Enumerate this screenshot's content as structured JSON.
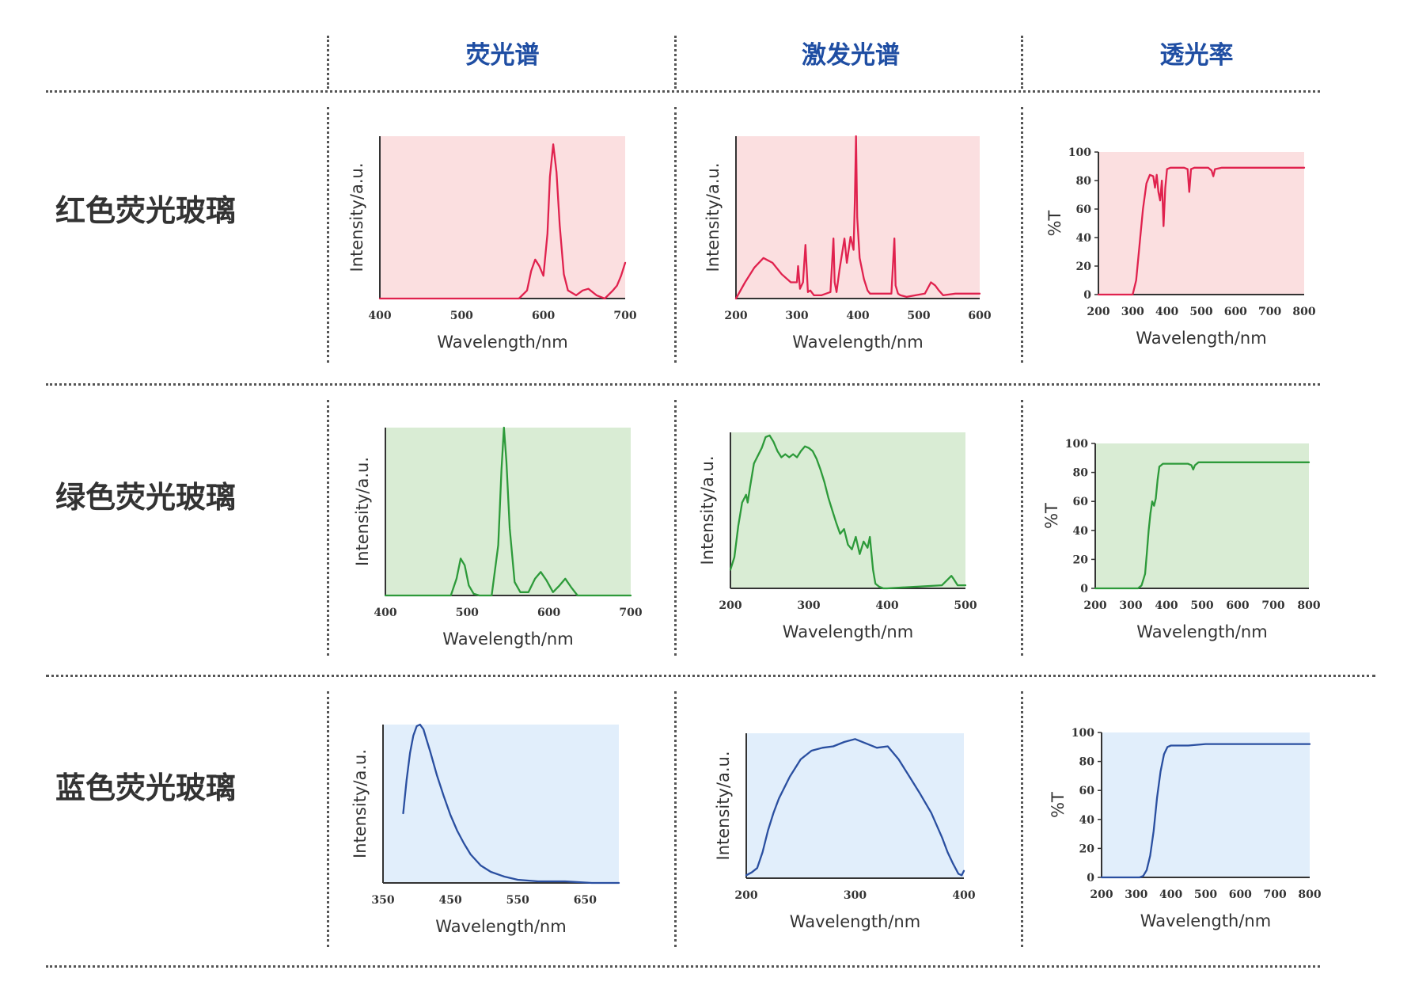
{
  "headers": {
    "emission": "荧光谱",
    "excitation": "激发光谱",
    "transmittance": "透光率"
  },
  "rows": [
    {
      "label": "红色荧光玻璃"
    },
    {
      "label": "绿色荧光玻璃"
    },
    {
      "label": "蓝色荧光玻璃"
    }
  ],
  "colors": {
    "header_text": "#1f4ea3",
    "row_text": "#333333",
    "divider": "#555555",
    "red_line": "#e0224e",
    "red_bg": "#fbdfe0",
    "green_line": "#2d9a3a",
    "green_bg": "#d9ecd4",
    "blue_line": "#2a4fa0",
    "blue_bg": "#e1eefb"
  },
  "chart_data": [
    {
      "id": "red-emission",
      "type": "line",
      "xlabel": "Wavelength/nm",
      "ylabel": "Intensity/a.u.",
      "xlim": [
        400,
        700
      ],
      "ylim": [
        0,
        100
      ],
      "xticks": [
        400,
        500,
        600,
        700
      ],
      "yticks": [],
      "color": "red",
      "series": [
        {
          "x": [
            400,
            570,
            580,
            585,
            590,
            595,
            600,
            605,
            608,
            612,
            616,
            620,
            625,
            630,
            640,
            648,
            655,
            665,
            675,
            685,
            690,
            695,
            700
          ],
          "y": [
            0,
            0,
            5,
            17,
            24,
            20,
            14,
            40,
            75,
            95,
            78,
            45,
            15,
            5,
            2,
            5,
            6,
            2,
            0,
            5,
            8,
            14,
            22
          ]
        }
      ]
    },
    {
      "id": "red-excitation",
      "type": "line",
      "xlabel": "Wavelength/nm",
      "ylabel": "Intensity/a.u.",
      "xlim": [
        200,
        600
      ],
      "ylim": [
        0,
        100
      ],
      "xticks": [
        200,
        300,
        400,
        500,
        600
      ],
      "yticks": [],
      "color": "red",
      "series": [
        {
          "x": [
            200,
            215,
            230,
            245,
            260,
            275,
            290,
            300,
            302,
            305,
            310,
            314,
            318,
            322,
            328,
            340,
            355,
            360,
            362,
            365,
            370,
            378,
            382,
            388,
            393,
            395,
            397,
            399,
            403,
            410,
            416,
            420,
            430,
            455,
            460,
            462,
            466,
            470,
            480,
            510,
            520,
            527,
            533,
            540,
            560,
            600
          ],
          "y": [
            0,
            10,
            19,
            25,
            22,
            15,
            10,
            10,
            20,
            6,
            10,
            33,
            4,
            5,
            2,
            2,
            4,
            37,
            10,
            4,
            18,
            37,
            22,
            38,
            30,
            60,
            100,
            50,
            25,
            12,
            5,
            3,
            3,
            3,
            37,
            8,
            3,
            2,
            1,
            3,
            10,
            8,
            5,
            2,
            3,
            3
          ]
        }
      ]
    },
    {
      "id": "red-transmittance",
      "type": "line",
      "xlabel": "Wavelength/nm",
      "ylabel": "%T",
      "xlim": [
        200,
        800
      ],
      "ylim": [
        0,
        100
      ],
      "xticks": [
        200,
        300,
        400,
        500,
        600,
        700,
        800
      ],
      "yticks": [
        0,
        20,
        40,
        60,
        80,
        100
      ],
      "color": "red",
      "series": [
        {
          "x": [
            200,
            300,
            310,
            320,
            330,
            340,
            350,
            360,
            365,
            370,
            375,
            380,
            385,
            390,
            395,
            400,
            410,
            420,
            450,
            460,
            465,
            470,
            480,
            520,
            530,
            535,
            540,
            560,
            600,
            800
          ],
          "y": [
            0,
            0,
            10,
            35,
            60,
            78,
            84,
            83,
            75,
            84,
            72,
            66,
            80,
            48,
            75,
            88,
            89,
            89,
            89,
            88,
            72,
            88,
            89,
            89,
            87,
            83,
            88,
            89,
            89,
            89
          ]
        }
      ]
    },
    {
      "id": "green-emission",
      "type": "line",
      "xlabel": "Wavelength/nm",
      "ylabel": "Intensity/a.u.",
      "xlim": [
        400,
        700
      ],
      "ylim": [
        0,
        100
      ],
      "xticks": [
        400,
        500,
        600,
        700
      ],
      "yticks": [],
      "color": "green",
      "series": [
        {
          "x": [
            400,
            480,
            487,
            492,
            497,
            502,
            508,
            515,
            530,
            538,
            542,
            545,
            548,
            552,
            558,
            565,
            575,
            583,
            590,
            597,
            605,
            613,
            620,
            627,
            635,
            700
          ],
          "y": [
            0,
            0,
            10,
            22,
            18,
            6,
            1,
            0,
            0,
            30,
            75,
            100,
            80,
            40,
            8,
            2,
            2,
            10,
            14,
            9,
            2,
            6,
            10,
            5,
            0,
            0
          ]
        }
      ]
    },
    {
      "id": "green-excitation",
      "type": "line",
      "xlabel": "Wavelength/nm",
      "ylabel": "Intensity/a.u.",
      "xlim": [
        200,
        500
      ],
      "ylim": [
        0,
        100
      ],
      "xticks": [
        200,
        300,
        400,
        500
      ],
      "yticks": [],
      "color": "green",
      "series": [
        {
          "x": [
            200,
            205,
            210,
            215,
            220,
            222,
            225,
            230,
            240,
            245,
            250,
            255,
            260,
            265,
            270,
            275,
            280,
            285,
            290,
            295,
            300,
            305,
            310,
            315,
            320,
            325,
            330,
            335,
            340,
            345,
            350,
            355,
            360,
            365,
            370,
            375,
            378,
            382,
            385,
            390,
            395,
            400,
            470,
            478,
            482,
            485,
            490,
            500
          ],
          "y": [
            12,
            20,
            40,
            55,
            60,
            55,
            65,
            80,
            90,
            97,
            98,
            94,
            88,
            84,
            86,
            84,
            86,
            84,
            88,
            91,
            90,
            88,
            83,
            76,
            68,
            58,
            50,
            42,
            35,
            38,
            28,
            25,
            33,
            22,
            30,
            26,
            33,
            12,
            3,
            1,
            0,
            0,
            2,
            6,
            8,
            6,
            2,
            2
          ]
        }
      ]
    },
    {
      "id": "green-transmittance",
      "type": "line",
      "xlabel": "Wavelength/nm",
      "ylabel": "%T",
      "xlim": [
        200,
        800
      ],
      "ylim": [
        0,
        100
      ],
      "xticks": [
        200,
        300,
        400,
        500,
        600,
        700,
        800
      ],
      "yticks": [
        0,
        20,
        40,
        60,
        80,
        100
      ],
      "color": "green",
      "series": [
        {
          "x": [
            200,
            320,
            330,
            340,
            345,
            350,
            355,
            360,
            365,
            370,
            375,
            380,
            385,
            390,
            395,
            400,
            420,
            460,
            470,
            475,
            480,
            490,
            500,
            800
          ],
          "y": [
            0,
            0,
            2,
            10,
            25,
            40,
            52,
            60,
            57,
            62,
            75,
            84,
            85,
            86,
            86,
            86,
            86,
            86,
            85,
            82,
            85,
            87,
            87,
            87
          ]
        }
      ]
    },
    {
      "id": "blue-emission",
      "type": "line",
      "xlabel": "Wavelength/nm",
      "ylabel": "Intensity/a.u.",
      "xlim": [
        350,
        700
      ],
      "ylim": [
        0,
        100
      ],
      "xticks": [
        350,
        450,
        550,
        650
      ],
      "yticks": [],
      "color": "blue",
      "series": [
        {
          "x": [
            380,
            385,
            390,
            395,
            400,
            405,
            410,
            415,
            420,
            430,
            440,
            450,
            460,
            470,
            480,
            495,
            510,
            530,
            550,
            580,
            620,
            660,
            700
          ],
          "y": [
            44,
            65,
            82,
            93,
            99,
            100,
            97,
            90,
            83,
            68,
            55,
            43,
            33,
            25,
            18,
            11,
            7,
            4,
            2,
            1,
            1,
            0,
            0
          ]
        }
      ]
    },
    {
      "id": "blue-excitation",
      "type": "line",
      "xlabel": "Wavelength/nm",
      "ylabel": "Intensity/a.u.",
      "xlim": [
        200,
        400
      ],
      "ylim": [
        0,
        100
      ],
      "xticks": [
        200,
        300,
        400
      ],
      "yticks": [],
      "color": "blue",
      "series": [
        {
          "x": [
            200,
            205,
            210,
            215,
            220,
            225,
            230,
            240,
            250,
            260,
            270,
            280,
            290,
            300,
            310,
            320,
            330,
            340,
            350,
            360,
            370,
            380,
            385,
            390,
            395,
            398,
            400
          ],
          "y": [
            2,
            4,
            7,
            18,
            33,
            45,
            55,
            70,
            82,
            88,
            90,
            91,
            94,
            96,
            93,
            90,
            91,
            82,
            70,
            58,
            45,
            28,
            18,
            10,
            3,
            2,
            5
          ]
        }
      ]
    },
    {
      "id": "blue-transmittance",
      "type": "line",
      "xlabel": "Wavelength/nm",
      "ylabel": "%T",
      "xlim": [
        200,
        800
      ],
      "ylim": [
        0,
        100
      ],
      "xticks": [
        200,
        300,
        400,
        500,
        600,
        700,
        800
      ],
      "yticks": [
        0,
        20,
        40,
        60,
        80,
        100
      ],
      "color": "blue",
      "series": [
        {
          "x": [
            200,
            310,
            320,
            330,
            340,
            350,
            360,
            370,
            380,
            390,
            400,
            420,
            450,
            500,
            800
          ],
          "y": [
            0,
            0,
            1,
            5,
            15,
            32,
            55,
            73,
            85,
            90,
            91,
            91,
            91,
            92,
            92
          ]
        }
      ]
    }
  ]
}
